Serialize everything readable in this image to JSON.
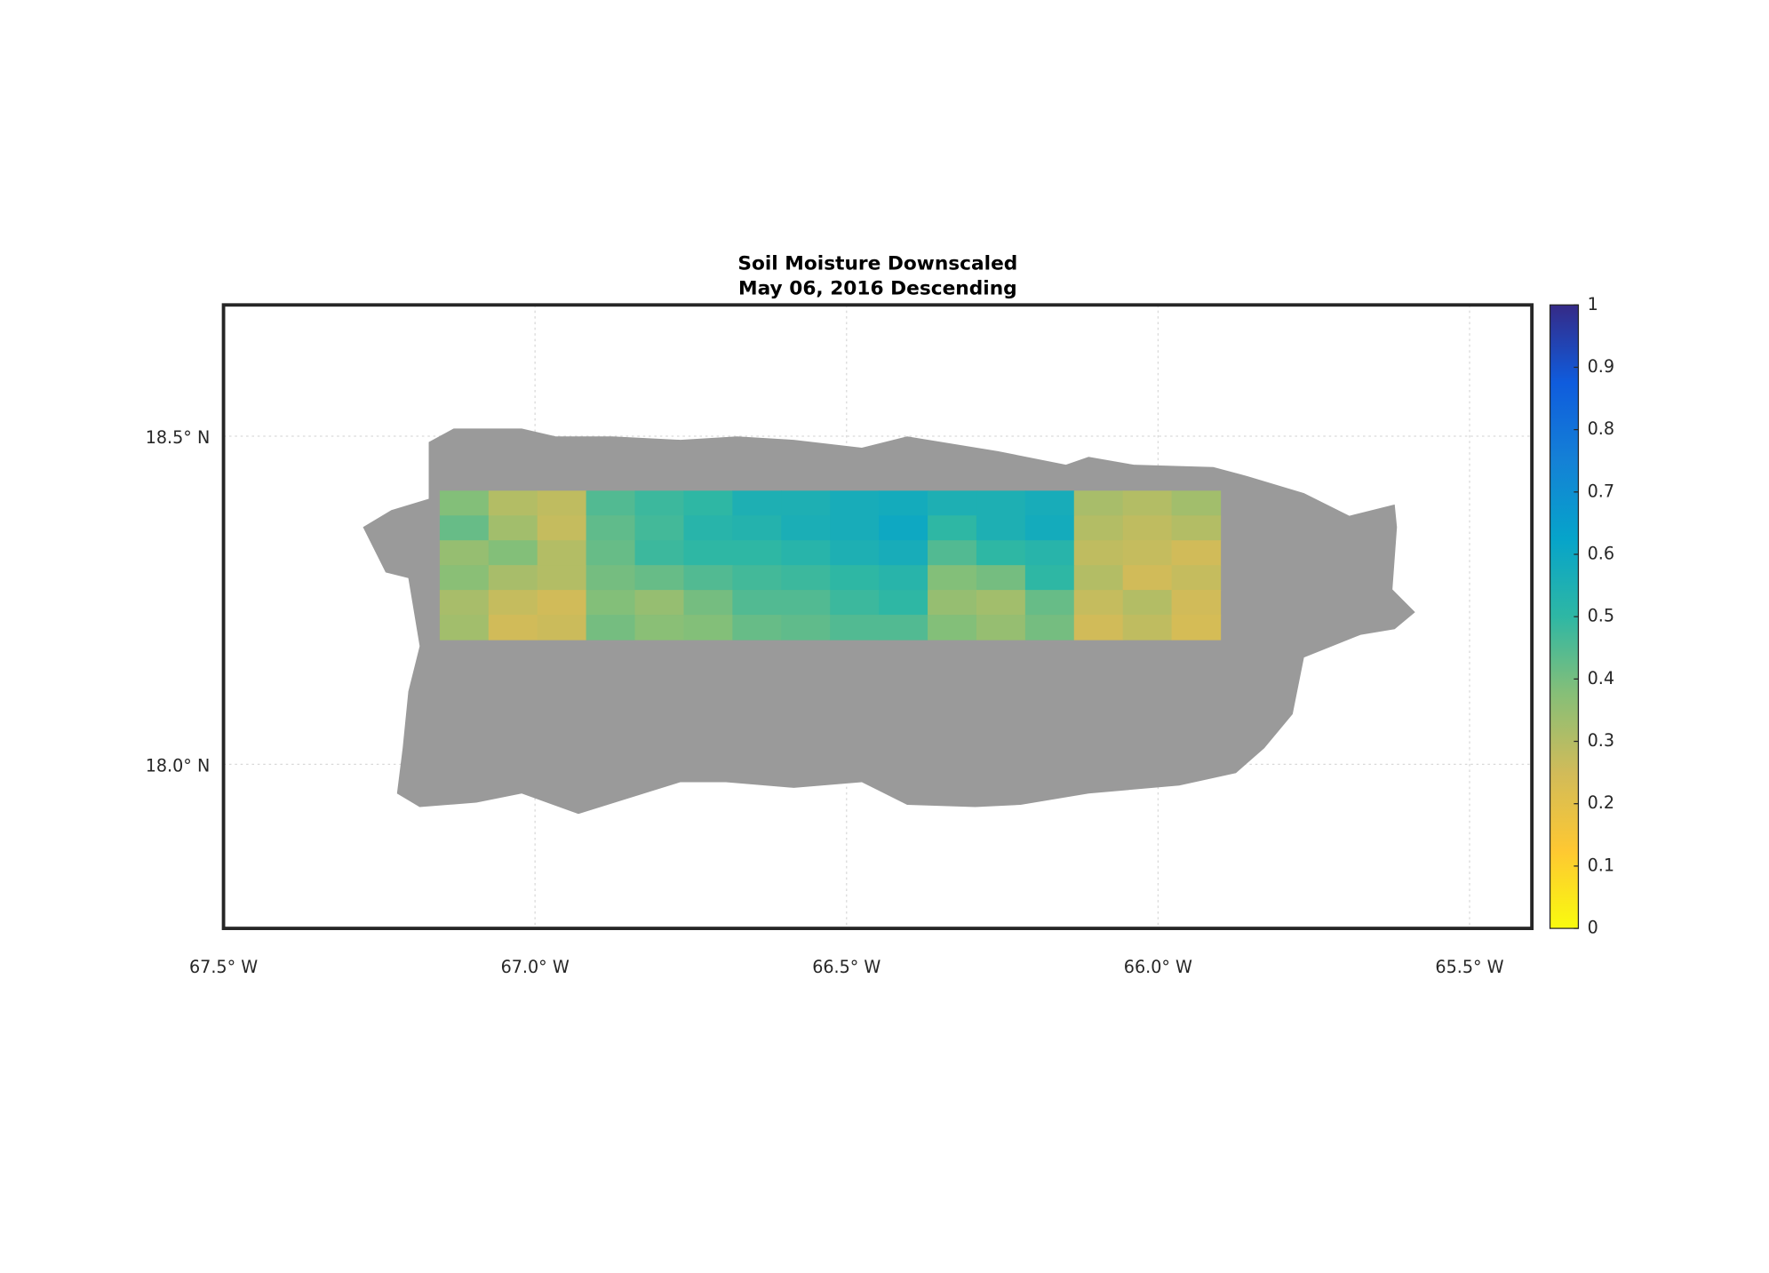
{
  "chart_data": {
    "type": "map",
    "title": [
      "Soil Moisture Downscaled",
      "May 06, 2016 Descending"
    ],
    "xlim": [
      -67.5,
      -65.4
    ],
    "ylim": [
      17.75,
      18.7
    ],
    "xticks": [
      {
        "value": -67.5,
        "label": "67.5° W"
      },
      {
        "value": -67.0,
        "label": "67.0° W"
      },
      {
        "value": -66.5,
        "label": "66.5° W"
      },
      {
        "value": -66.0,
        "label": "66.0° W"
      },
      {
        "value": -65.5,
        "label": "65.5° W"
      }
    ],
    "yticks": [
      {
        "value": 18.0,
        "label": "18.0° N"
      },
      {
        "value": 18.5,
        "label": "18.5° N"
      }
    ],
    "grid": true,
    "land_color": "#9a9a9a",
    "colorbar": {
      "clim": [
        0,
        1
      ],
      "ticks": [
        0,
        0.1,
        0.2,
        0.3,
        0.4,
        0.5,
        0.6,
        0.7,
        0.8,
        0.9,
        1
      ],
      "colormap": [
        "#f9fb0e",
        "#fec832",
        "#d1bb59",
        "#87bf77",
        "#2eb7a4",
        "#06a4ca",
        "#1481d6",
        "#0f5cdd",
        "#352a87"
      ]
    },
    "grid_data": {
      "lon": [
        -67.153,
        -65.9
      ],
      "lat": [
        18.19,
        18.417
      ],
      "values": [
        [
          0.38,
          0.3,
          0.28,
          0.45,
          0.48,
          0.5,
          0.55,
          0.55,
          0.57,
          0.58,
          0.55,
          0.55,
          0.57,
          0.32,
          0.3,
          0.33
        ],
        [
          0.42,
          0.33,
          0.27,
          0.43,
          0.47,
          0.52,
          0.53,
          0.56,
          0.57,
          0.6,
          0.5,
          0.55,
          0.58,
          0.3,
          0.28,
          0.3
        ],
        [
          0.35,
          0.38,
          0.3,
          0.42,
          0.48,
          0.5,
          0.5,
          0.52,
          0.55,
          0.57,
          0.45,
          0.5,
          0.52,
          0.28,
          0.27,
          0.25
        ],
        [
          0.37,
          0.32,
          0.3,
          0.4,
          0.42,
          0.45,
          0.47,
          0.48,
          0.5,
          0.52,
          0.38,
          0.4,
          0.5,
          0.3,
          0.25,
          0.27
        ],
        [
          0.32,
          0.27,
          0.25,
          0.38,
          0.35,
          0.4,
          0.45,
          0.45,
          0.48,
          0.5,
          0.35,
          0.33,
          0.42,
          0.27,
          0.3,
          0.25
        ],
        [
          0.33,
          0.25,
          0.26,
          0.4,
          0.37,
          0.38,
          0.42,
          0.43,
          0.45,
          0.45,
          0.38,
          0.35,
          0.4,
          0.25,
          0.28,
          0.24
        ]
      ]
    }
  }
}
